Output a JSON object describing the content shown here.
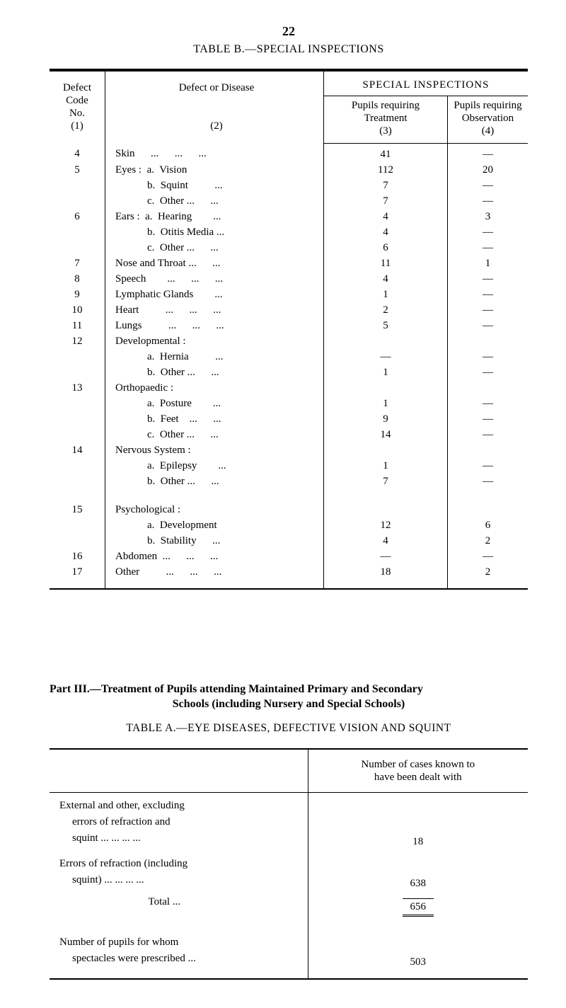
{
  "page_number": "22",
  "table_b": {
    "title": "TABLE B.—SPECIAL INSPECTIONS",
    "header": {
      "defect_code": "Defect\nCode\nNo.\n(1)",
      "defect_disease": "Defect or Disease\n\n(2)",
      "special": "SPECIAL INSPECTIONS",
      "treatment": "Pupils requiring\nTreatment\n(3)",
      "observation": "Pupils requiring\nObservation\n(4)"
    },
    "header_lines": {
      "defect_code_1": "Defect",
      "defect_code_2": "Code",
      "defect_code_3": "No.",
      "defect_code_4": "(1)",
      "defect_disease_1": "Defect or Disease",
      "defect_disease_2": "(2)",
      "treatment_1": "Pupils requiring",
      "treatment_2": "Treatment",
      "treatment_3": "(3)",
      "observation_1": "Pupils requiring",
      "observation_2": "Observation",
      "observation_3": "(4)"
    },
    "rows": [
      {
        "code": "4",
        "label": "Skin      ...      ...      ...",
        "treat": "41",
        "obs": "—"
      },
      {
        "code": "5",
        "label": "Eyes :  a.  Vision",
        "treat": "112",
        "obs": "20"
      },
      {
        "code": "",
        "label": "            b.  Squint          ...",
        "treat": "7",
        "obs": "—",
        "indent": "a"
      },
      {
        "code": "",
        "label": "            c.  Other ...      ...",
        "treat": "7",
        "obs": "—",
        "indent": "a"
      },
      {
        "code": "6",
        "label": "Ears :  a.  Hearing        ...",
        "treat": "4",
        "obs": "3"
      },
      {
        "code": "",
        "label": "            b.  Otitis Media ...",
        "treat": "4",
        "obs": "—",
        "indent": "a"
      },
      {
        "code": "",
        "label": "            c.  Other ...      ...",
        "treat": "6",
        "obs": "—",
        "indent": "a"
      },
      {
        "code": "7",
        "label": "Nose and Throat ...      ...",
        "treat": "11",
        "obs": "1"
      },
      {
        "code": "8",
        "label": "Speech        ...      ...      ...",
        "treat": "4",
        "obs": "—"
      },
      {
        "code": "9",
        "label": "Lymphatic Glands        ...",
        "treat": "1",
        "obs": "—"
      },
      {
        "code": "10",
        "label": "Heart          ...      ...      ...",
        "treat": "2",
        "obs": "—"
      },
      {
        "code": "11",
        "label": "Lungs          ...      ...      ...",
        "treat": "5",
        "obs": "—"
      },
      {
        "code": "12",
        "label": "Developmental :",
        "treat": "",
        "obs": ""
      },
      {
        "code": "",
        "label": "            a.  Hernia          ...",
        "treat": "—",
        "obs": "—",
        "indent": "a"
      },
      {
        "code": "",
        "label": "            b.  Other ...      ...",
        "treat": "1",
        "obs": "—",
        "indent": "a"
      },
      {
        "code": "13",
        "label": "Orthopaedic :",
        "treat": "",
        "obs": ""
      },
      {
        "code": "",
        "label": "            a.  Posture        ...",
        "treat": "1",
        "obs": "—",
        "indent": "a"
      },
      {
        "code": "",
        "label": "            b.  Feet    ...      ...",
        "treat": "9",
        "obs": "—",
        "indent": "a"
      },
      {
        "code": "",
        "label": "            c.  Other ...      ...",
        "treat": "14",
        "obs": "—",
        "indent": "a"
      },
      {
        "code": "14",
        "label": "Nervous System :",
        "treat": "",
        "obs": ""
      },
      {
        "code": "",
        "label": "            a.  Epilepsy        ...",
        "treat": "1",
        "obs": "—",
        "indent": "a"
      },
      {
        "code": "",
        "label": "            b.  Other ...      ...",
        "treat": "7",
        "obs": "—",
        "indent": "a"
      },
      {
        "code": "",
        "label": "",
        "treat": "",
        "obs": "",
        "gap": true
      },
      {
        "code": "15",
        "label": "Psychological :",
        "treat": "",
        "obs": ""
      },
      {
        "code": "",
        "label": "            a.  Development",
        "treat": "12",
        "obs": "6",
        "indent": "a"
      },
      {
        "code": "",
        "label": "            b.  Stability      ...",
        "treat": "4",
        "obs": "2",
        "indent": "a"
      },
      {
        "code": "16",
        "label": "Abdomen  ...      ...      ...",
        "treat": "—",
        "obs": "—"
      },
      {
        "code": "17",
        "label": "Other          ...      ...      ...",
        "treat": "18",
        "obs": "2"
      }
    ]
  },
  "part_iii": {
    "line1_prefix": "Part III.—",
    "line1_rest": "Treatment of Pupils attending Maintained Primary and Secondary",
    "line2": "Schools (including Nursery and Special Schools)"
  },
  "table_a": {
    "title": "TABLE A.—EYE DISEASES, DEFECTIVE VISION AND SQUINT",
    "header_right": "Number of cases known to\nhave been dealt with",
    "header_right_1": "Number of cases known to",
    "header_right_2": "have been dealt with",
    "rows": {
      "external_label_1": "External and other, excluding",
      "external_label_2": "errors   of   refraction   and",
      "external_label_3": "squint     ...       ...       ...       ...",
      "external_value": "18",
      "errors_label_1": "Errors of refraction (including",
      "errors_label_2": "squint)   ...       ...       ...       ...",
      "errors_value": "638",
      "total_label": "Total          ...",
      "total_value": "656",
      "spectacles_label_1": "Number  of  pupils  for  whom",
      "spectacles_label_2": "spectacles were prescribed     ...",
      "spectacles_value": "503"
    }
  },
  "style": {
    "text_color": "#000000",
    "background": "#ffffff",
    "font_family": "Times New Roman",
    "body_fontsize": 16,
    "table_fontsize": 15
  }
}
